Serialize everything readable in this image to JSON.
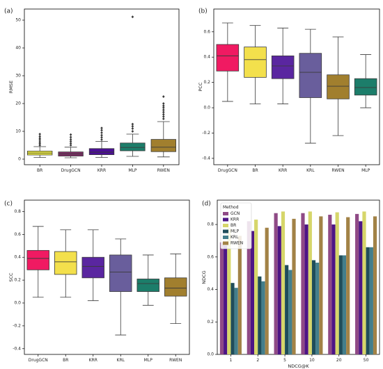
{
  "chart_data": [
    {
      "panel_label": "(a)",
      "type": "box",
      "xlabel": "",
      "ylabel": "RMSE",
      "ylim": [
        -2,
        54
      ],
      "yticks": [
        0,
        10,
        20,
        30,
        40,
        50
      ],
      "grid": false,
      "categories": [
        "BR",
        "DrugGCN",
        "KRR",
        "MLP",
        "RWEN"
      ],
      "boxes": [
        {
          "name": "BR",
          "color": "#f0ee43",
          "whisker_low": 0.6,
          "q1": 1.5,
          "median": 2.2,
          "q3": 2.9,
          "whisker_high": 4.5,
          "outliers": [
            5.0,
            5.6,
            6.2,
            6.9,
            7.5,
            8.2,
            9.0
          ]
        },
        {
          "name": "DrugGCN",
          "color": "#7e2e66",
          "whisker_low": 0.5,
          "q1": 1.1,
          "median": 1.9,
          "q3": 2.6,
          "whisker_high": 4.3,
          "outliers": [
            5.0,
            5.7,
            6.4,
            7.1,
            7.9,
            8.8
          ]
        },
        {
          "name": "KRR",
          "color": "#4b0f97",
          "whisker_low": 0.6,
          "q1": 1.6,
          "median": 2.5,
          "q3": 3.8,
          "whisker_high": 6.4,
          "outliers": [
            7.0,
            7.8,
            8.6,
            9.5,
            10.4,
            11.2
          ]
        },
        {
          "name": "MLP",
          "color": "#1c7d6a",
          "whisker_low": 1.0,
          "q1": 3.0,
          "median": 4.2,
          "q3": 5.8,
          "whisker_high": 9.0,
          "outliers": [
            10.0,
            11.0,
            11.8,
            12.6,
            51.2
          ]
        },
        {
          "name": "RWEN",
          "color": "#a17f2e",
          "whisker_low": 0.8,
          "q1": 2.7,
          "median": 4.3,
          "q3": 7.1,
          "whisker_high": 13.5,
          "outliers": [
            14.5,
            15.3,
            16.1,
            16.9,
            17.7,
            18.5,
            19.2,
            20.0,
            22.5
          ]
        }
      ]
    },
    {
      "panel_label": "(b)",
      "type": "box",
      "xlabel": "",
      "ylabel": "PCC",
      "ylim": [
        -0.45,
        0.78
      ],
      "yticks": [
        -0.4,
        -0.2,
        0.0,
        0.2,
        0.4,
        0.6
      ],
      "grid": false,
      "categories": [
        "DrugGCN",
        "BR",
        "KRR",
        "KRL",
        "RWEN",
        "MLP"
      ],
      "boxes": [
        {
          "name": "DrugGCN",
          "color": "#f01a62",
          "whisker_low": 0.05,
          "q1": 0.29,
          "median": 0.41,
          "q3": 0.5,
          "whisker_high": 0.67,
          "outliers": []
        },
        {
          "name": "BR",
          "color": "#f3e04c",
          "whisker_low": 0.03,
          "q1": 0.24,
          "median": 0.38,
          "q3": 0.48,
          "whisker_high": 0.65,
          "outliers": []
        },
        {
          "name": "KRR",
          "color": "#5a26a0",
          "whisker_low": 0.03,
          "q1": 0.23,
          "median": 0.33,
          "q3": 0.41,
          "whisker_high": 0.63,
          "outliers": []
        },
        {
          "name": "KRL",
          "color": "#695e9c",
          "whisker_low": -0.28,
          "q1": 0.08,
          "median": 0.28,
          "q3": 0.43,
          "whisker_high": 0.62,
          "outliers": []
        },
        {
          "name": "RWEN",
          "color": "#a17f2e",
          "whisker_low": -0.22,
          "q1": 0.07,
          "median": 0.17,
          "q3": 0.26,
          "whisker_high": 0.56,
          "outliers": []
        },
        {
          "name": "MLP",
          "color": "#1c7d6a",
          "whisker_low": 0.0,
          "q1": 0.1,
          "median": 0.16,
          "q3": 0.23,
          "whisker_high": 0.42,
          "outliers": []
        }
      ]
    },
    {
      "panel_label": "(c)",
      "type": "box",
      "xlabel": "",
      "ylabel": "SCC",
      "ylim": [
        -0.45,
        0.9
      ],
      "yticks": [
        -0.4,
        -0.2,
        0.0,
        0.2,
        0.4,
        0.6,
        0.8
      ],
      "grid": false,
      "categories": [
        "DrugGCN",
        "BR",
        "KRR",
        "KRL",
        "MLP",
        "RWEN"
      ],
      "boxes": [
        {
          "name": "DrugGCN",
          "color": "#f01a62",
          "whisker_low": 0.05,
          "q1": 0.29,
          "median": 0.39,
          "q3": 0.46,
          "whisker_high": 0.67,
          "outliers": []
        },
        {
          "name": "BR",
          "color": "#f3e04c",
          "whisker_low": 0.05,
          "q1": 0.25,
          "median": 0.36,
          "q3": 0.45,
          "whisker_high": 0.64,
          "outliers": []
        },
        {
          "name": "KRR",
          "color": "#5a26a0",
          "whisker_low": 0.02,
          "q1": 0.22,
          "median": 0.32,
          "q3": 0.4,
          "whisker_high": 0.64,
          "outliers": []
        },
        {
          "name": "KRL",
          "color": "#695e9c",
          "whisker_low": -0.28,
          "q1": 0.1,
          "median": 0.27,
          "q3": 0.42,
          "whisker_high": 0.56,
          "outliers": []
        },
        {
          "name": "MLP",
          "color": "#1c7d6a",
          "whisker_low": -0.02,
          "q1": 0.1,
          "median": 0.17,
          "q3": 0.21,
          "whisker_high": 0.42,
          "outliers": []
        },
        {
          "name": "RWEN",
          "color": "#a17f2e",
          "whisker_low": -0.18,
          "q1": 0.06,
          "median": 0.13,
          "q3": 0.22,
          "whisker_high": 0.43,
          "outliers": []
        }
      ]
    },
    {
      "panel_label": "(d)",
      "type": "bar",
      "xlabel": "NDCG@K",
      "ylabel": "NDCG",
      "ylim": [
        0,
        0.95
      ],
      "yticks": [
        0.0,
        0.2,
        0.4,
        0.6,
        0.8
      ],
      "grid": false,
      "legend_title": "Method",
      "legend_position": "top-left",
      "categories": [
        "1",
        "2",
        "5",
        "10",
        "20",
        "50"
      ],
      "series": [
        {
          "name": "GCN",
          "color": "#8f4a86",
          "values": [
            0.69,
            0.82,
            0.87,
            0.87,
            0.86,
            0.865
          ]
        },
        {
          "name": "KRR",
          "color": "#4d1585",
          "values": [
            0.67,
            0.76,
            0.79,
            0.8,
            0.8,
            0.82
          ]
        },
        {
          "name": "BR",
          "color": "#d6d66a",
          "values": [
            0.78,
            0.83,
            0.88,
            0.88,
            0.875,
            0.88
          ]
        },
        {
          "name": "MLP",
          "color": "#1f4d5a",
          "values": [
            0.44,
            0.48,
            0.55,
            0.58,
            0.61,
            0.66
          ]
        },
        {
          "name": "KRL",
          "color": "#437e8b",
          "values": [
            0.41,
            0.45,
            0.52,
            0.565,
            0.61,
            0.66
          ]
        },
        {
          "name": "RWEN",
          "color": "#a28246",
          "values": [
            0.73,
            0.78,
            0.835,
            0.85,
            0.845,
            0.85
          ]
        }
      ]
    }
  ]
}
